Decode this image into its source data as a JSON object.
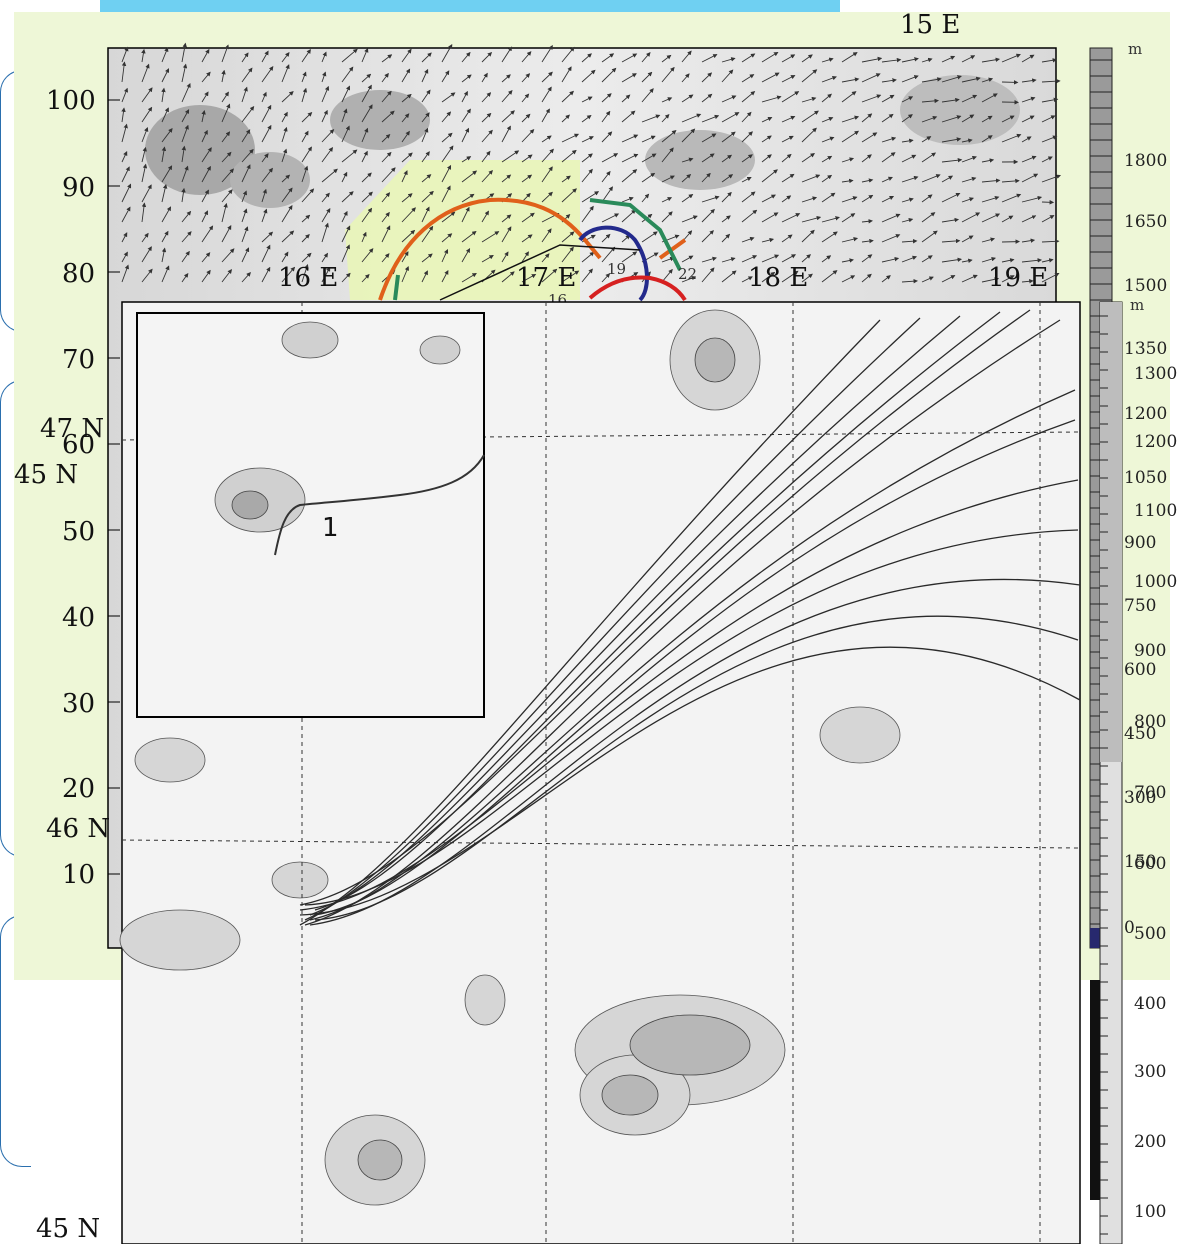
{
  "top_map": {
    "corner_label": "15 E",
    "y_ticks": [
      "100",
      "90",
      "80",
      "70",
      "60",
      "50",
      "40",
      "30",
      "20",
      "10"
    ],
    "lon_labels": [
      "16 E",
      "17 E",
      "18 E",
      "19 E"
    ],
    "track_labels": [
      "19",
      "22",
      "16"
    ],
    "colorbar": {
      "unit": "m",
      "labels": [
        "1800",
        "1650",
        "1500",
        "1350",
        "1200",
        "1050",
        "900",
        "750",
        "600",
        "450",
        "300",
        "150",
        "0"
      ]
    },
    "track_colors": [
      "#e0601a",
      "#2a8a5a",
      "#232a8c",
      "#d62020",
      "#111111"
    ]
  },
  "bottom_map": {
    "lat_labels": [
      "47 N",
      "46 N",
      "45 N"
    ],
    "left_lat_label": "45 N",
    "colorbar": {
      "unit": "m",
      "labels": [
        "1300",
        "1200",
        "1100",
        "1000",
        "900",
        "800",
        "700",
        "600",
        "500",
        "400",
        "300",
        "200",
        "100"
      ]
    },
    "inset": {
      "trajectory_label": "1"
    }
  },
  "colors": {
    "title_strip": "#6fd0f2",
    "panel_background": "#eef7d7",
    "bracket": "#2a6fae"
  }
}
